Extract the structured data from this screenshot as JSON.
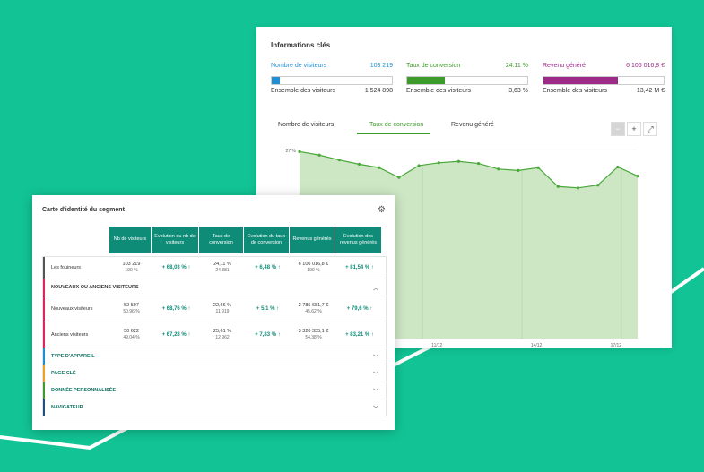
{
  "info_card": {
    "title": "Informations clés",
    "kpis": [
      {
        "label": "Nombre de visiteurs",
        "value": "103 219",
        "total_label": "Ensemble des visiteurs",
        "total_value": "1 524 898",
        "color": "#1f8fd4",
        "fill_fraction": 0.068
      },
      {
        "label": "Taux de conversion",
        "value": "24.11 %",
        "total_label": "Ensemble des visiteurs",
        "total_value": "3,63  %",
        "color": "#3e9a2a",
        "fill_fraction": 0.31
      },
      {
        "label": "Revenu généré",
        "value": "6 106 016,8  €",
        "total_label": "Ensemble des visiteurs",
        "total_value": "13,42  M €",
        "color": "#9c2a86",
        "fill_fraction": 0.62
      }
    ],
    "tabs": [
      "Nombre de visiteurs",
      "Taux de conversion",
      "Revenu généré"
    ],
    "active_tab": 1,
    "tools": [
      "−",
      "+",
      "⤢"
    ]
  },
  "chart_data": {
    "type": "area",
    "y_tick": "27 %",
    "x_ticks": [
      "11/12",
      "14/12",
      "17/12"
    ],
    "values": [
      26.8,
      26.3,
      25.6,
      25.0,
      24.5,
      23.1,
      24.8,
      25.2,
      25.4,
      25.1,
      24.3,
      24.1,
      24.5,
      21.8,
      21.6,
      22.0,
      24.6,
      23.3
    ],
    "ylim": [
      0,
      28
    ]
  },
  "segment_card": {
    "title": "Carte d'identité du segment",
    "headers": [
      "Nb de visiteurs",
      "Evolution du nb de visiteurs",
      "Taux de conversion",
      "Evolution du taux de conversion",
      "Revenus générés",
      "Evolution des revenus générés"
    ],
    "rows": [
      {
        "label": "Les fouineurs",
        "visitors": "103 219",
        "visitors_sub": "100 %",
        "evo_visitors": "+ 68,03 % ↑",
        "rate": "24,11 %",
        "rate_sub": "24 881",
        "evo_rate": "+ 6,48 % ↑",
        "revenue": "6 106 016,8 €",
        "revenue_sub": "100 %",
        "evo_revenue": "+ 81,54 % ↑"
      }
    ],
    "group_title": "NOUVEAUX OU ANCIENS VISITEURS",
    "group_rows": [
      {
        "label": "Nouveaux visiteurs",
        "visitors": "52 597",
        "visitors_sub": "50,96 %",
        "evo_visitors": "+ 68,76 % ↑",
        "rate": "22,66 %",
        "rate_sub": "11 919",
        "evo_rate": "+ 5,1 % ↑",
        "revenue": "2 785 681,7 €",
        "revenue_sub": "45,62 %",
        "evo_revenue": "+ 79,6 % ↑"
      },
      {
        "label": "Anciens visiteurs",
        "visitors": "50 622",
        "visitors_sub": "49,04 %",
        "evo_visitors": "+ 67,28 % ↑",
        "rate": "25,61 %",
        "rate_sub": "12 962",
        "evo_rate": "+ 7,83 % ↑",
        "revenue": "3 320 335,1 €",
        "revenue_sub": "54,38 %",
        "evo_revenue": "+ 83,21 % ↑"
      }
    ],
    "sections": [
      {
        "label": "TYPE D'APPAREIL",
        "color": "#1f8fd4"
      },
      {
        "label": "PAGE CLÉ",
        "color": "#f0a020"
      },
      {
        "label": "DONNÉE PERSONNALISÉE",
        "color": "#3e9a2a"
      },
      {
        "label": "NAVIGATEUR",
        "color": "#1f4f7a"
      }
    ],
    "group_color": "#e0245e"
  }
}
